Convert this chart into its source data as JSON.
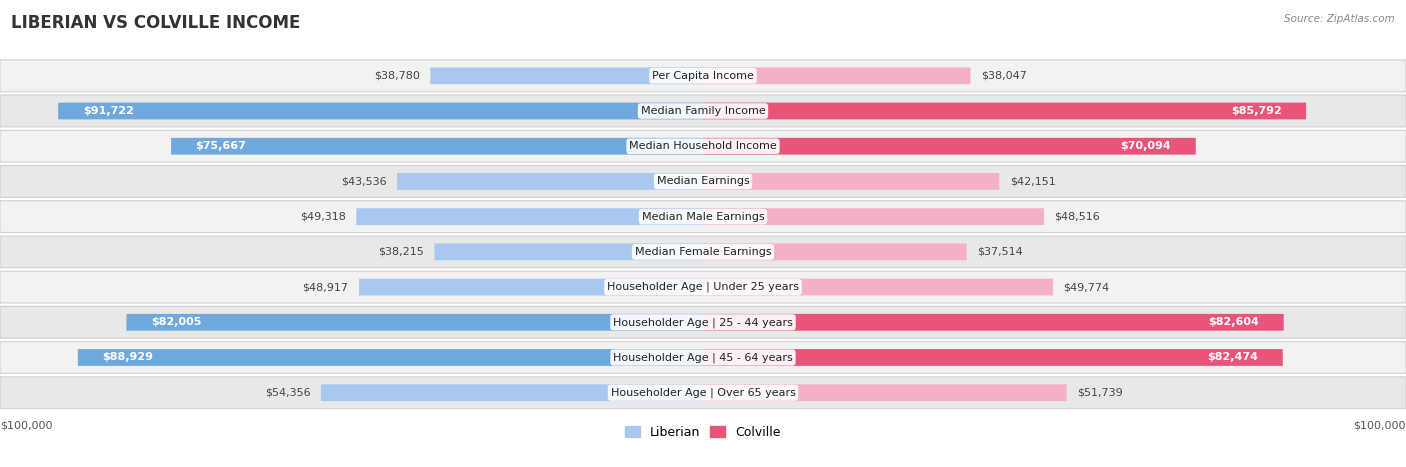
{
  "title": "LIBERIAN VS COLVILLE INCOME",
  "source": "Source: ZipAtlas.com",
  "categories": [
    "Per Capita Income",
    "Median Family Income",
    "Median Household Income",
    "Median Earnings",
    "Median Male Earnings",
    "Median Female Earnings",
    "Householder Age | Under 25 years",
    "Householder Age | 25 - 44 years",
    "Householder Age | 45 - 64 years",
    "Householder Age | Over 65 years"
  ],
  "liberian_values": [
    38780,
    91722,
    75667,
    43536,
    49318,
    38215,
    48917,
    82005,
    88929,
    54356
  ],
  "colville_values": [
    38047,
    85792,
    70094,
    42151,
    48516,
    37514,
    49774,
    82604,
    82474,
    51739
  ],
  "liberian_labels": [
    "$38,780",
    "$91,722",
    "$75,667",
    "$43,536",
    "$49,318",
    "$38,215",
    "$48,917",
    "$82,005",
    "$88,929",
    "$54,356"
  ],
  "colville_labels": [
    "$38,047",
    "$85,792",
    "$70,094",
    "$42,151",
    "$48,516",
    "$37,514",
    "$49,774",
    "$82,604",
    "$82,474",
    "$51,739"
  ],
  "max_value": 100000,
  "liberian_color_large": "#6fa8dc",
  "liberian_color_small": "#a8c8f0",
  "colville_color_large": "#e8547a",
  "colville_color_small": "#f4b0c8",
  "row_colors": [
    "#f2f2f2",
    "#e8e8e8"
  ],
  "title_fontsize": 12,
  "label_fontsize": 8,
  "category_fontsize": 8,
  "inside_label_threshold": 55000
}
